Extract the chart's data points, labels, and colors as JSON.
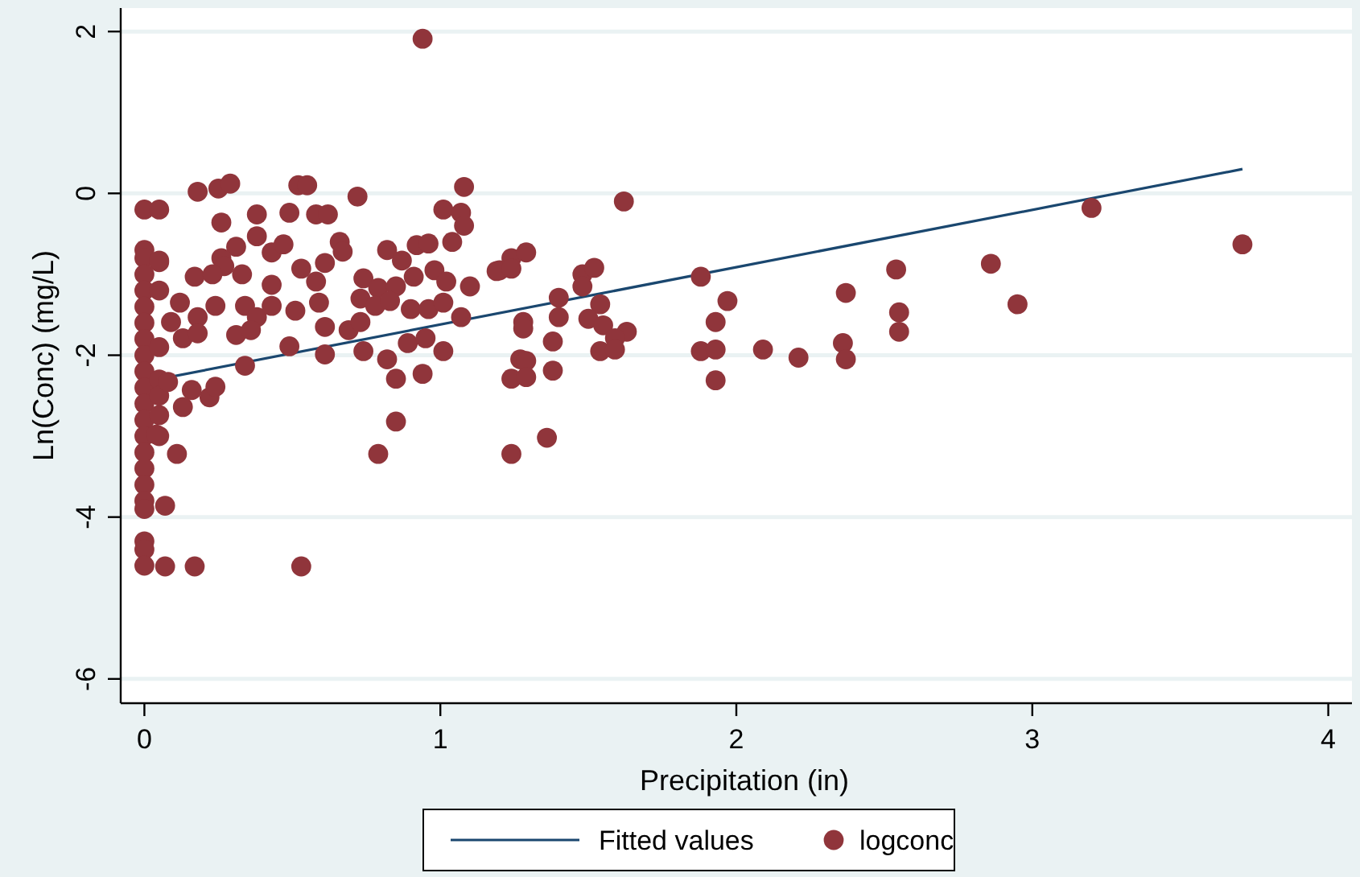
{
  "chart_data": {
    "type": "scatter",
    "xlabel": "Precipitation (in)",
    "ylabel": "Ln(Conc) (mg/L)",
    "xlim": [
      -0.08,
      4.08
    ],
    "ylim": [
      -6.3,
      2.29
    ],
    "xticks": [
      0,
      1,
      2,
      3,
      4
    ],
    "yticks": [
      -6,
      -4,
      -2,
      0,
      2
    ],
    "grid": "y",
    "legend": "bottom",
    "series": [
      {
        "name": "Fitted values",
        "type": "line",
        "color": "#1a476f",
        "line_style": "solid",
        "marker": "none",
        "x": [
          0,
          3.71
        ],
        "values": [
          -2.33,
          0.3
        ]
      },
      {
        "name": "logconc",
        "color": "#90353b",
        "marker": "circle",
        "x": [
          0,
          0,
          0,
          0,
          0,
          0,
          0,
          0,
          0,
          0,
          0,
          0,
          0,
          0,
          0,
          0,
          0,
          0,
          0,
          0,
          0,
          0,
          0.05,
          0.05,
          0.05,
          0.05,
          0.05,
          0.05,
          0.05,
          0.18,
          0.25,
          0.29,
          0.26,
          0.38,
          0.38,
          0.49,
          0.52,
          0.55,
          0.58,
          0.62,
          0.72,
          1.08,
          1.01,
          1.07,
          1.08,
          1.04,
          0.05,
          0.31,
          0.26,
          0.27,
          0.33,
          0.17,
          0.23,
          0.43,
          0.47,
          0.53,
          0.58,
          0.43,
          0.61,
          0.66,
          0.67,
          0.82,
          0.87,
          0.92,
          0.96,
          0.74,
          0.79,
          0.85,
          0.91,
          0.98,
          1.02,
          1.1,
          1.2,
          1.24,
          1.29,
          0.12,
          0.24,
          0.18,
          0.34,
          0.38,
          0.43,
          0.51,
          0.59,
          0.73,
          0.78,
          0.83,
          0.9,
          0.96,
          1.01,
          1.07,
          0.09,
          0.13,
          0.18,
          0.31,
          0.36,
          0.61,
          0.69,
          0.73,
          0.74,
          0.82,
          0.89,
          0.95,
          0.49,
          0.61,
          0.34,
          0.94,
          1.01,
          0.85,
          1.24,
          1.27,
          0.08,
          0.16,
          0.22,
          0.24,
          0.13,
          0.05,
          0.04,
          0.85,
          0.11,
          0.79,
          1.24,
          0.07,
          0.17,
          0.53,
          0.07,
          0.94,
          1.62,
          1.19,
          1.24,
          1.48,
          1.52,
          1.48,
          1.4,
          1.4,
          1.54,
          1.5,
          1.55,
          1.28,
          1.28,
          1.38,
          1.63,
          1.59,
          1.54,
          1.59,
          1.29,
          1.29,
          1.38,
          1.36,
          1.88,
          1.97,
          1.93,
          1.88,
          1.93,
          1.93,
          2.09,
          2.21,
          2.37,
          2.36,
          2.37,
          2.54,
          2.55,
          2.55,
          2.86,
          2.95,
          3.2,
          3.71
        ],
        "values": [
          -0.2,
          -0.7,
          -0.8,
          -1.0,
          -1.2,
          -1.4,
          -1.6,
          -1.8,
          -2.0,
          -2.2,
          -2.4,
          -2.6,
          -2.8,
          -3.0,
          -3.2,
          -3.4,
          -3.6,
          -3.8,
          -3.9,
          -4.3,
          -4.4,
          -4.6,
          -0.2,
          -1.2,
          -1.9,
          -2.3,
          -2.5,
          -3.0,
          -0.85,
          0.02,
          0.06,
          0.12,
          -0.36,
          -0.26,
          -0.53,
          -0.24,
          0.1,
          0.1,
          -0.26,
          -0.26,
          -0.04,
          0.08,
          -0.2,
          -0.24,
          -0.4,
          -0.6,
          -0.83,
          -0.66,
          -0.8,
          -0.9,
          -1.0,
          -1.03,
          -1.0,
          -0.73,
          -0.63,
          -0.93,
          -1.09,
          -1.13,
          -0.86,
          -0.6,
          -0.72,
          -0.7,
          -0.83,
          -0.64,
          -0.62,
          -1.05,
          -1.17,
          -1.15,
          -1.03,
          -0.95,
          -1.09,
          -1.15,
          -0.95,
          -0.8,
          -0.73,
          -1.35,
          -1.39,
          -1.53,
          -1.39,
          -1.53,
          -1.39,
          -1.45,
          -1.35,
          -1.3,
          -1.39,
          -1.33,
          -1.43,
          -1.43,
          -1.35,
          -1.53,
          -1.59,
          -1.79,
          -1.73,
          -1.75,
          -1.69,
          -1.65,
          -1.69,
          -1.59,
          -1.95,
          -2.05,
          -1.85,
          -1.79,
          -1.89,
          -1.99,
          -2.13,
          -2.23,
          -1.95,
          -2.29,
          -2.29,
          -2.05,
          -2.33,
          -2.43,
          -2.52,
          -2.39,
          -2.64,
          -2.74,
          -2.98,
          -2.82,
          -3.22,
          -3.22,
          -3.22,
          -3.86,
          -4.61,
          -4.61,
          -4.61,
          1.91,
          -0.1,
          -0.96,
          -0.93,
          -1.0,
          -0.92,
          -1.15,
          -1.29,
          -1.53,
          -1.37,
          -1.55,
          -1.63,
          -1.59,
          -1.67,
          -1.83,
          -1.71,
          -1.79,
          -1.95,
          -1.93,
          -2.07,
          -2.27,
          -2.19,
          -3.02,
          -1.03,
          -1.33,
          -1.59,
          -1.95,
          -1.93,
          -2.31,
          -1.93,
          -2.03,
          -1.23,
          -1.85,
          -2.05,
          -0.94,
          -1.47,
          -1.71,
          -0.87,
          -1.37,
          -0.18,
          -0.63
        ]
      }
    ]
  }
}
